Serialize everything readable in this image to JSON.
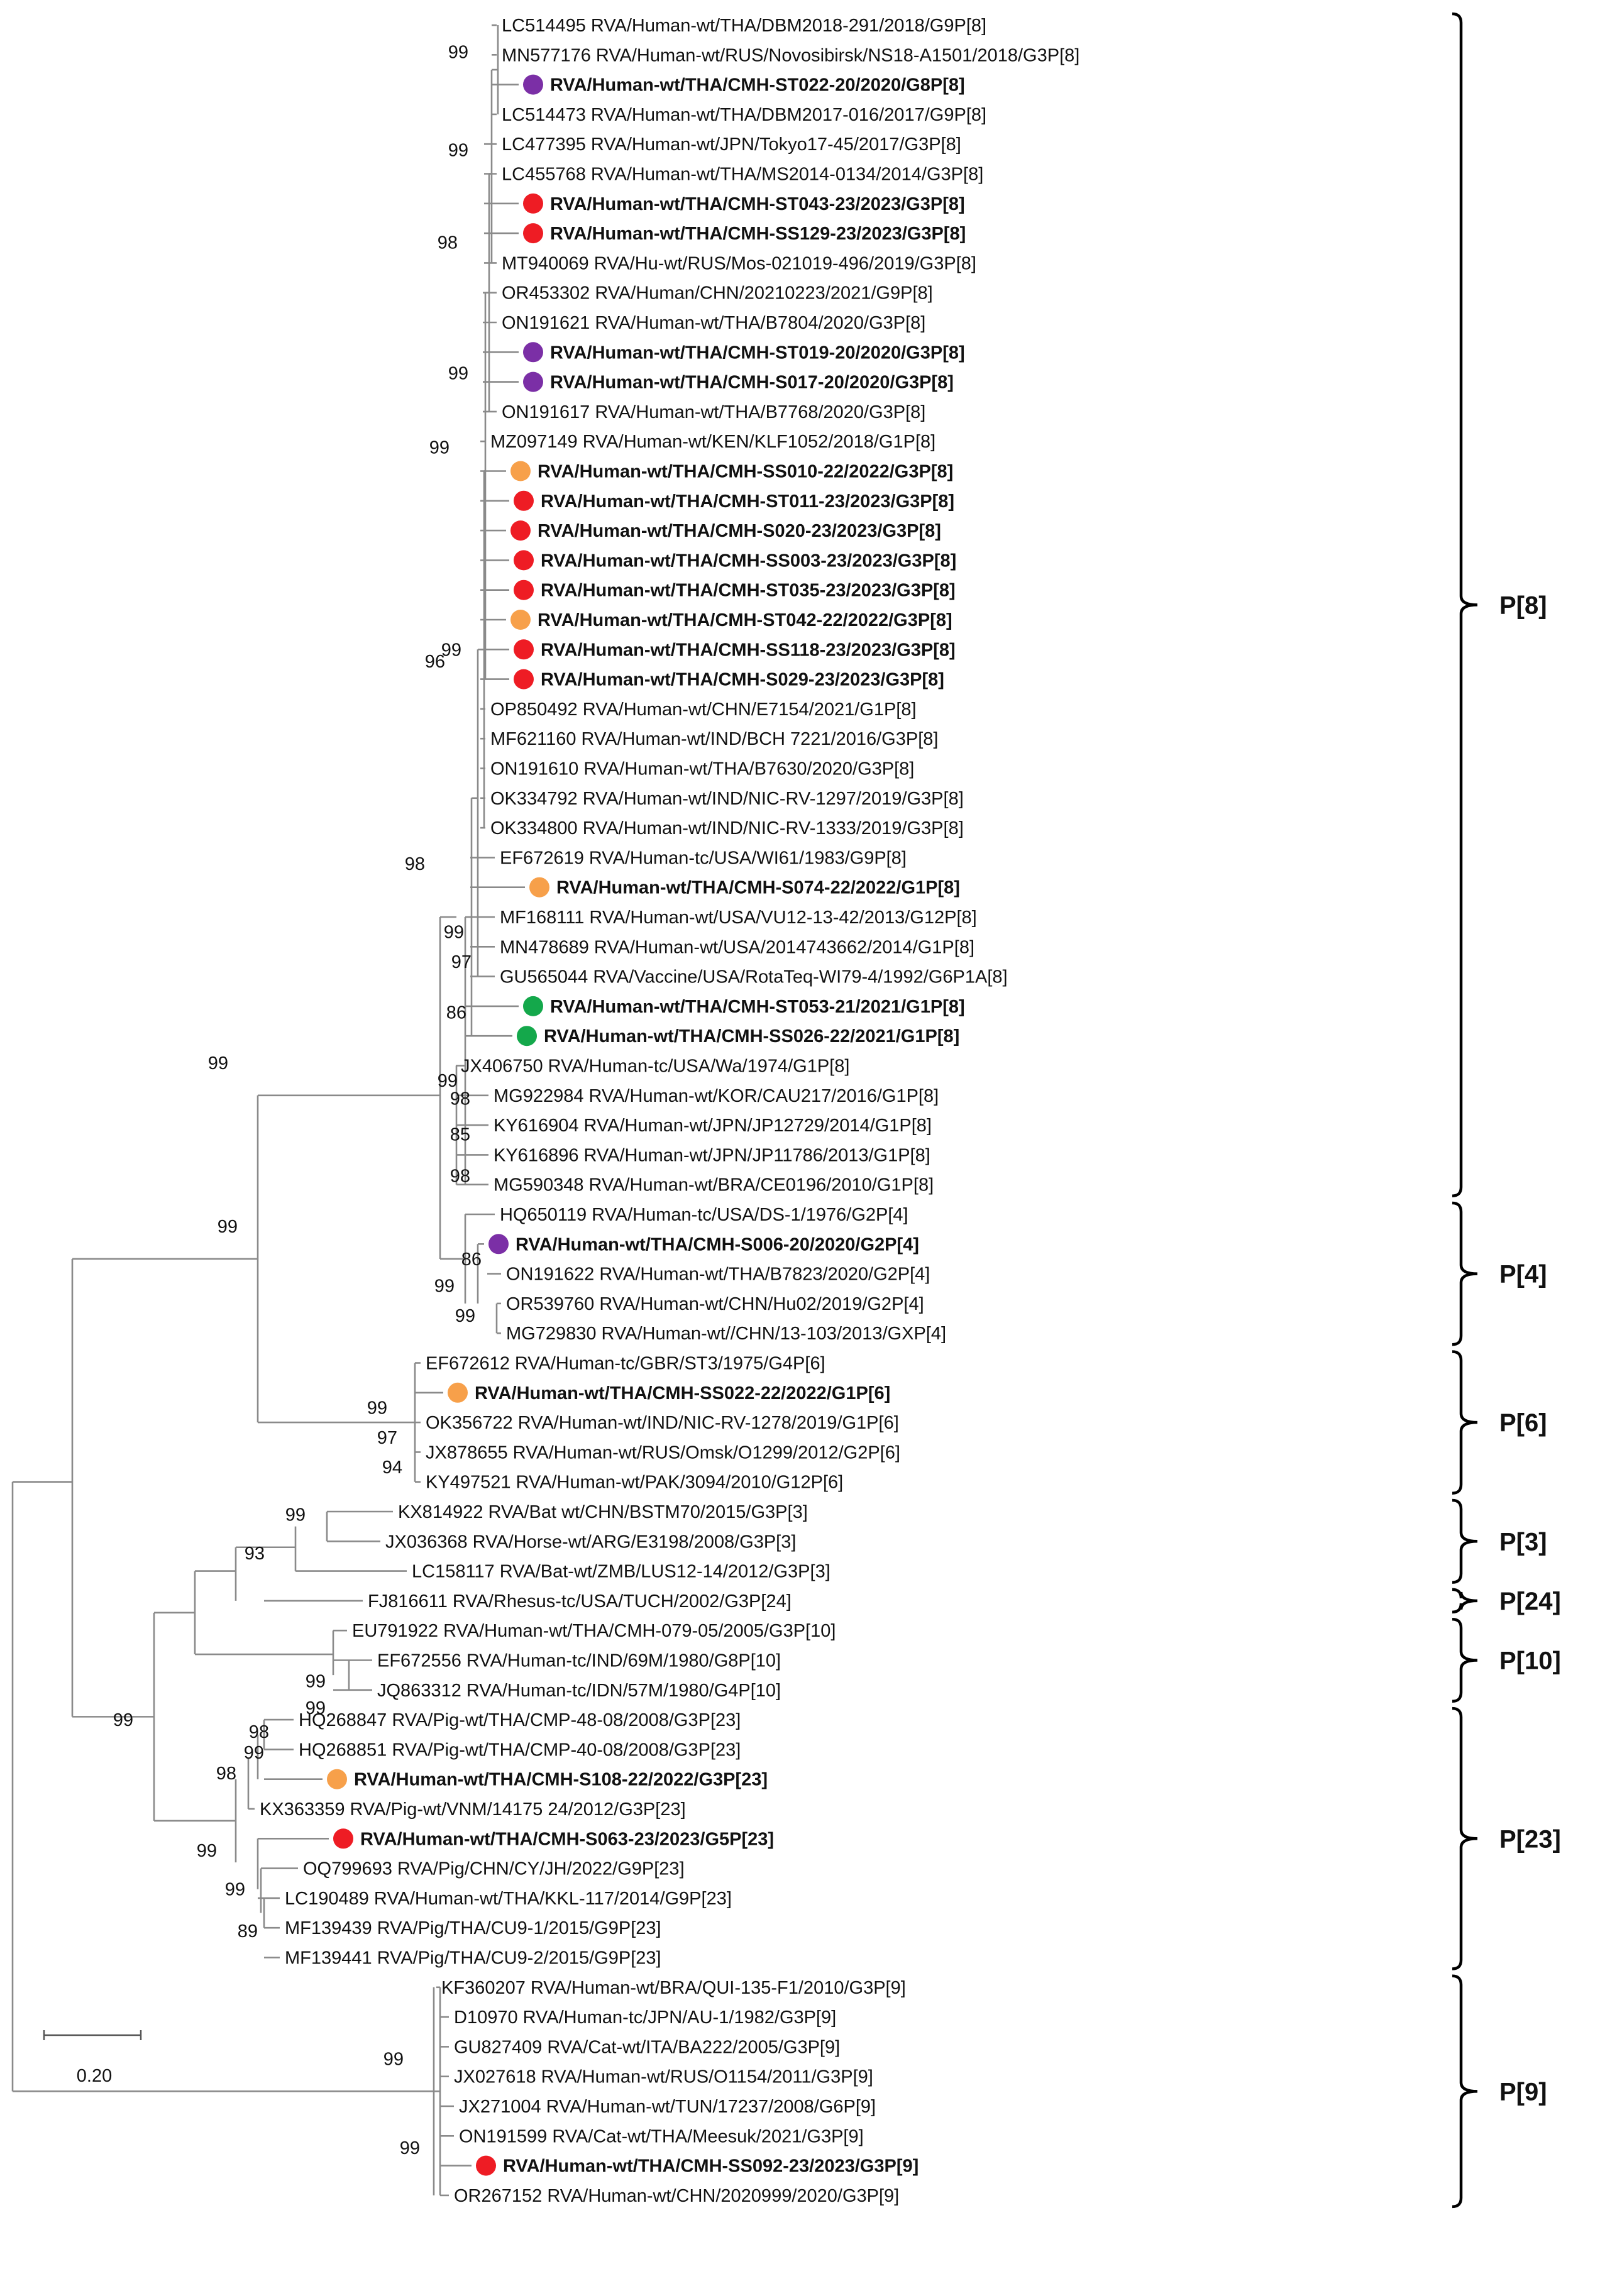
{
  "figure": {
    "colors": {
      "purple": "#7b2fa6",
      "red": "#ee1c24",
      "orange": "#f7a04a",
      "green": "#14a84b",
      "branch": "#8a8a8a",
      "text": "#111111"
    },
    "scale_bar_label": "0.20",
    "groups": [
      {
        "label": "P[8]",
        "from": 0,
        "to": 39
      },
      {
        "label": "P[4]",
        "from": 40,
        "to": 44
      },
      {
        "label": "P[6]",
        "from": 45,
        "to": 49
      },
      {
        "label": "P[3]",
        "from": 50,
        "to": 52
      },
      {
        "label": "P[24]",
        "from": 53,
        "to": 53
      },
      {
        "label": "P[10]",
        "from": 54,
        "to": 56
      },
      {
        "label": "P[23]",
        "from": 57,
        "to": 65
      },
      {
        "label": "P[9]",
        "from": 66,
        "to": 73
      }
    ],
    "leaves": [
      {
        "label": "LC514495 RVA/Human-wt/THA/DBM2018-291/2018/G9P[8]"
      },
      {
        "label": "MN577176 RVA/Human-wt/RUS/Novosibirsk/NS18-A1501/2018/G3P[8]"
      },
      {
        "label": "RVA/Human-wt/THA/CMH-ST022-20/2020/G8P[8]",
        "dot": "purple"
      },
      {
        "label": "LC514473 RVA/Human-wt/THA/DBM2017-016/2017/G9P[8]"
      },
      {
        "label": "LC477395 RVA/Human-wt/JPN/Tokyo17-45/2017/G3P[8]"
      },
      {
        "label": "LC455768 RVA/Human-wt/THA/MS2014-0134/2014/G3P[8]"
      },
      {
        "label": "RVA/Human-wt/THA/CMH-ST043-23/2023/G3P[8]",
        "dot": "red"
      },
      {
        "label": "RVA/Human-wt/THA/CMH-SS129-23/2023/G3P[8]",
        "dot": "red"
      },
      {
        "label": "MT940069 RVA/Hu-wt/RUS/Mos-021019-496/2019/G3P[8]"
      },
      {
        "label": "OR453302 RVA/Human/CHN/20210223/2021/G9P[8]"
      },
      {
        "label": "ON191621 RVA/Human-wt/THA/B7804/2020/G3P[8]"
      },
      {
        "label": "RVA/Human-wt/THA/CMH-ST019-20/2020/G3P[8]",
        "dot": "purple"
      },
      {
        "label": "RVA/Human-wt/THA/CMH-S017-20/2020/G3P[8]",
        "dot": "purple"
      },
      {
        "label": "ON191617 RVA/Human-wt/THA/B7768/2020/G3P[8]"
      },
      {
        "label": "MZ097149 RVA/Human-wt/KEN/KLF1052/2018/G1P[8]"
      },
      {
        "label": "RVA/Human-wt/THA/CMH-SS010-22/2022/G3P[8]",
        "dot": "orange"
      },
      {
        "label": "RVA/Human-wt/THA/CMH-ST011-23/2023/G3P[8]",
        "dot": "red"
      },
      {
        "label": "RVA/Human-wt/THA/CMH-S020-23/2023/G3P[8]",
        "dot": "red"
      },
      {
        "label": "RVA/Human-wt/THA/CMH-SS003-23/2023/G3P[8]",
        "dot": "red"
      },
      {
        "label": "RVA/Human-wt/THA/CMH-ST035-23/2023/G3P[8]",
        "dot": "red"
      },
      {
        "label": "RVA/Human-wt/THA/CMH-ST042-22/2022/G3P[8]",
        "dot": "orange"
      },
      {
        "label": "RVA/Human-wt/THA/CMH-SS118-23/2023/G3P[8]",
        "dot": "red"
      },
      {
        "label": "RVA/Human-wt/THA/CMH-S029-23/2023/G3P[8]",
        "dot": "red"
      },
      {
        "label": "OP850492 RVA/Human-wt/CHN/E7154/2021/G1P[8]"
      },
      {
        "label": "MF621160 RVA/Human-wt/IND/BCH 7221/2016/G3P[8]"
      },
      {
        "label": "ON191610 RVA/Human-wt/THA/B7630/2020/G3P[8]"
      },
      {
        "label": "OK334792 RVA/Human-wt/IND/NIC-RV-1297/2019/G3P[8]"
      },
      {
        "label": "OK334800 RVA/Human-wt/IND/NIC-RV-1333/2019/G3P[8]"
      },
      {
        "label": "EF672619 RVA/Human-tc/USA/WI61/1983/G9P[8]"
      },
      {
        "label": "RVA/Human-wt/THA/CMH-S074-22/2022/G1P[8]",
        "dot": "orange"
      },
      {
        "label": "MF168111 RVA/Human-wt/USA/VU12-13-42/2013/G12P[8]"
      },
      {
        "label": "MN478689 RVA/Human-wt/USA/2014743662/2014/G1P[8]"
      },
      {
        "label": "GU565044 RVA/Vaccine/USA/RotaTeq-WI79-4/1992/G6P1A[8]"
      },
      {
        "label": "RVA/Human-wt/THA/CMH-ST053-21/2021/G1P[8]",
        "dot": "green"
      },
      {
        "label": "RVA/Human-wt/THA/CMH-SS026-22/2021/G1P[8]",
        "dot": "green"
      },
      {
        "label": "JX406750 RVA/Human-tc/USA/Wa/1974/G1P[8]"
      },
      {
        "label": "MG922984 RVA/Human-wt/KOR/CAU217/2016/G1P[8]"
      },
      {
        "label": "KY616904 RVA/Human-wt/JPN/JP12729/2014/G1P[8]"
      },
      {
        "label": "KY616896 RVA/Human-wt/JPN/JP11786/2013/G1P[8]"
      },
      {
        "label": "MG590348 RVA/Human-wt/BRA/CE0196/2010/G1P[8]"
      },
      {
        "label": "HQ650119 RVA/Human-tc/USA/DS-1/1976/G2P[4]"
      },
      {
        "label": "RVA/Human-wt/THA/CMH-S006-20/2020/G2P[4]",
        "dot": "purple"
      },
      {
        "label": "ON191622 RVA/Human-wt/THA/B7823/2020/G2P[4]"
      },
      {
        "label": "OR539760 RVA/Human-wt/CHN/Hu02/2019/G2P[4]"
      },
      {
        "label": "MG729830 RVA/Human-wt//CHN/13-103/2013/GXP[4]"
      },
      {
        "label": "EF672612 RVA/Human-tc/GBR/ST3/1975/G4P[6]"
      },
      {
        "label": "RVA/Human-wt/THA/CMH-SS022-22/2022/G1P[6]",
        "dot": "orange"
      },
      {
        "label": "OK356722 RVA/Human-wt/IND/NIC-RV-1278/2019/G1P[6]"
      },
      {
        "label": "JX878655 RVA/Human-wt/RUS/Omsk/O1299/2012/G2P[6]"
      },
      {
        "label": "KY497521 RVA/Human-wt/PAK/3094/2010/G12P[6]"
      },
      {
        "label": "KX814922 RVA/Bat wt/CHN/BSTM70/2015/G3P[3]"
      },
      {
        "label": "JX036368 RVA/Horse-wt/ARG/E3198/2008/G3P[3]"
      },
      {
        "label": "LC158117 RVA/Bat-wt/ZMB/LUS12-14/2012/G3P[3]"
      },
      {
        "label": "FJ816611 RVA/Rhesus-tc/USA/TUCH/2002/G3P[24]"
      },
      {
        "label": "EU791922 RVA/Human-wt/THA/CMH-079-05/2005/G3P[10]"
      },
      {
        "label": "EF672556 RVA/Human-tc/IND/69M/1980/G8P[10]"
      },
      {
        "label": "JQ863312 RVA/Human-tc/IDN/57M/1980/G4P[10]"
      },
      {
        "label": "HQ268847 RVA/Pig-wt/THA/CMP-48-08/2008/G3P[23]"
      },
      {
        "label": "HQ268851 RVA/Pig-wt/THA/CMP-40-08/2008/G3P[23]"
      },
      {
        "label": "RVA/Human-wt/THA/CMH-S108-22/2022/G3P[23]",
        "dot": "orange"
      },
      {
        "label": "KX363359 RVA/Pig-wt/VNM/14175 24/2012/G3P[23]"
      },
      {
        "label": "RVA/Human-wt/THA/CMH-S063-23/2023/G5P[23]",
        "dot": "red"
      },
      {
        "label": "OQ799693 RVA/Pig/CHN/CY/JH/2022/G9P[23]"
      },
      {
        "label": "LC190489 RVA/Human-wt/THA/KKL-117/2014/G9P[23]"
      },
      {
        "label": "MF139439 RVA/Pig/THA/CU9-1/2015/G9P[23]"
      },
      {
        "label": "MF139441 RVA/Pig/THA/CU9-2/2015/G9P[23]"
      },
      {
        "label": "KF360207 RVA/Human-wt/BRA/QUI-135-F1/2010/G3P[9]"
      },
      {
        "label": "D10970 RVA/Human-tc/JPN/AU-1/1982/G3P[9]"
      },
      {
        "label": "GU827409 RVA/Cat-wt/ITA/BA222/2005/G3P[9]"
      },
      {
        "label": "JX027618 RVA/Human-wt/RUS/O1154/2011/G3P[9]"
      },
      {
        "label": "JX271004 RVA/Human-wt/TUN/17237/2008/G6P[9]"
      },
      {
        "label": "ON191599 RVA/Cat-wt/THA/Meesuk/2021/G3P[9]"
      },
      {
        "label": "RVA/Human-wt/THA/CMH-SS092-23/2023/G3P[9]",
        "dot": "red"
      },
      {
        "label": "OR267152 RVA/Human-wt/CHN/2020999/2020/G3P[9]"
      }
    ],
    "bootstraps": [
      "99",
      "99",
      "98",
      "99",
      "99",
      "96",
      "99",
      "98",
      "99",
      "97",
      "86",
      "99",
      "98",
      "85",
      "98",
      "99",
      "86",
      "99",
      "99",
      "99",
      "99",
      "97",
      "94",
      "99",
      "93",
      "99",
      "99",
      "99",
      "98",
      "99",
      "98",
      "99",
      "99",
      "89",
      "99",
      "99"
    ]
  }
}
